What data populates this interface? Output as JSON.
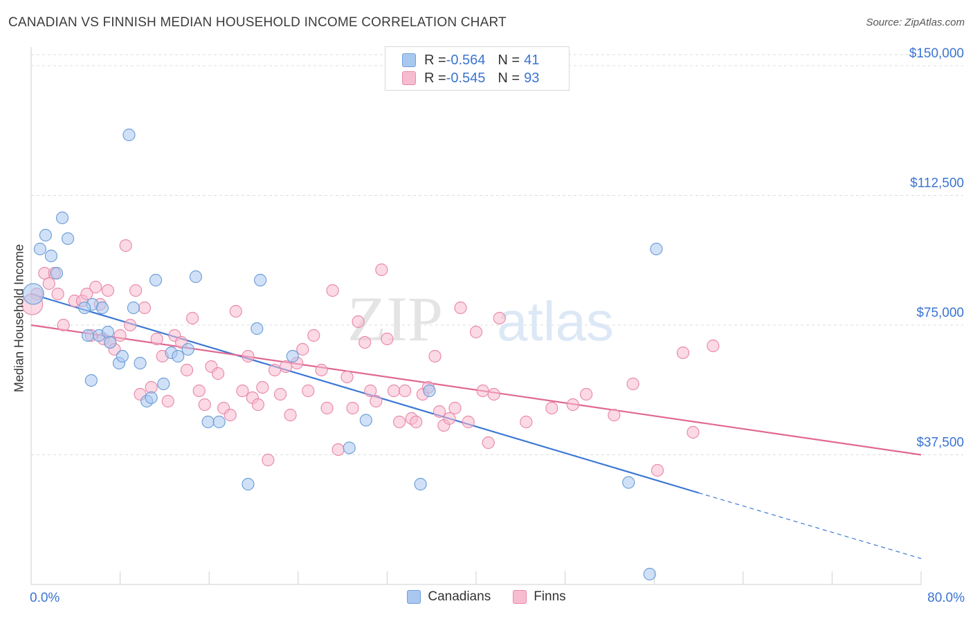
{
  "header": {
    "title": "CANADIAN VS FINNISH MEDIAN HOUSEHOLD INCOME CORRELATION CHART",
    "source": "Source: ZipAtlas.com"
  },
  "watermark": {
    "zip": "ZIP",
    "atlas": "atlas"
  },
  "legend_top": {
    "rows": [
      {
        "r_label": "R = ",
        "r_value": "-0.564",
        "n_label": "N = ",
        "n_value": "41",
        "color": "#a9c8f0",
        "border": "#6f9fd8"
      },
      {
        "r_label": "R = ",
        "r_value": "-0.545",
        "n_label": "N = ",
        "n_value": "93",
        "color": "#f7bcd0",
        "border": "#e98aa9"
      }
    ]
  },
  "legend_bottom": {
    "items": [
      {
        "label": "Canadians",
        "color": "#a9c8f0"
      },
      {
        "label": "Finns",
        "color": "#f7bcd0"
      }
    ]
  },
  "chart_data": {
    "type": "scatter",
    "title": "CANADIAN VS FINNISH MEDIAN HOUSEHOLD INCOME CORRELATION CHART",
    "xlabel": "",
    "ylabel": "Median Household Income",
    "xlim": [
      0,
      80
    ],
    "ylim": [
      0,
      157000
    ],
    "x_tick_labels": [
      "0.0%",
      "80.0%"
    ],
    "y_ticks": [
      37500,
      75000,
      112500,
      150000
    ],
    "y_tick_labels": [
      "$37,500",
      "$75,000",
      "$112,500",
      "$150,000"
    ],
    "grid": true,
    "series": [
      {
        "name": "Canadians",
        "color": "#a9c8f0",
        "stroke": "#6f9fd8",
        "line_color": "#3b78d4",
        "points": [
          [
            0.2,
            84000
          ],
          [
            0.8,
            97000
          ],
          [
            1.3,
            101000
          ],
          [
            1.8,
            95000
          ],
          [
            2.3,
            90000
          ],
          [
            2.8,
            106000
          ],
          [
            3.3,
            100000
          ],
          [
            5.5,
            81000
          ],
          [
            4.8,
            80000
          ],
          [
            5.1,
            72000
          ],
          [
            5.4,
            59000
          ],
          [
            6.1,
            72000
          ],
          [
            6.4,
            80000
          ],
          [
            6.9,
            73000
          ],
          [
            7.1,
            70000
          ],
          [
            7.9,
            64000
          ],
          [
            8.2,
            66000
          ],
          [
            8.8,
            130000
          ],
          [
            9.2,
            80000
          ],
          [
            9.8,
            64000
          ],
          [
            10.4,
            53000
          ],
          [
            10.8,
            54000
          ],
          [
            11.2,
            88000
          ],
          [
            11.9,
            58000
          ],
          [
            12.6,
            67000
          ],
          [
            13.2,
            66000
          ],
          [
            14.1,
            68000
          ],
          [
            14.8,
            89000
          ],
          [
            15.9,
            47000
          ],
          [
            16.9,
            47000
          ],
          [
            19.5,
            29000
          ],
          [
            20.3,
            74000
          ],
          [
            20.6,
            88000
          ],
          [
            23.5,
            66000
          ],
          [
            28.6,
            39500
          ],
          [
            30.1,
            47500
          ],
          [
            35.0,
            29000
          ],
          [
            35.8,
            56000
          ],
          [
            53.7,
            29500
          ],
          [
            56.2,
            97000
          ],
          [
            55.6,
            3000
          ]
        ],
        "trend": {
          "x0": 0,
          "y0": 84000,
          "x1": 60,
          "y1": 26500,
          "dash_to_x": 80,
          "dash_to_y": 7500
        }
      },
      {
        "name": "Finns",
        "color": "#f7bcd0",
        "stroke": "#e98aa9",
        "line_color": "#e06791",
        "points": [
          [
            0.5,
            84000
          ],
          [
            1.2,
            90000
          ],
          [
            1.6,
            87000
          ],
          [
            2.1,
            90000
          ],
          [
            2.4,
            84000
          ],
          [
            2.9,
            75000
          ],
          [
            3.9,
            82000
          ],
          [
            4.6,
            82000
          ],
          [
            5.0,
            84000
          ],
          [
            5.4,
            72000
          ],
          [
            5.8,
            86000
          ],
          [
            6.2,
            81000
          ],
          [
            6.5,
            71000
          ],
          [
            6.9,
            85000
          ],
          [
            7.1,
            70000
          ],
          [
            7.5,
            68000
          ],
          [
            8.0,
            72000
          ],
          [
            8.5,
            98000
          ],
          [
            8.9,
            75000
          ],
          [
            9.4,
            85000
          ],
          [
            9.8,
            55000
          ],
          [
            10.2,
            80000
          ],
          [
            10.8,
            57000
          ],
          [
            11.3,
            71000
          ],
          [
            11.8,
            66000
          ],
          [
            12.3,
            53000
          ],
          [
            12.9,
            72000
          ],
          [
            13.5,
            70000
          ],
          [
            14.0,
            62000
          ],
          [
            14.5,
            77000
          ],
          [
            15.1,
            56000
          ],
          [
            15.6,
            52000
          ],
          [
            16.2,
            63000
          ],
          [
            16.8,
            61000
          ],
          [
            17.3,
            51000
          ],
          [
            17.9,
            49000
          ],
          [
            18.4,
            79000
          ],
          [
            19.0,
            56000
          ],
          [
            19.5,
            66000
          ],
          [
            19.9,
            54000
          ],
          [
            20.4,
            52000
          ],
          [
            20.8,
            57000
          ],
          [
            21.3,
            36000
          ],
          [
            21.9,
            62000
          ],
          [
            22.4,
            55000
          ],
          [
            22.9,
            63000
          ],
          [
            23.3,
            49000
          ],
          [
            23.9,
            64000
          ],
          [
            24.4,
            68000
          ],
          [
            24.9,
            56000
          ],
          [
            25.4,
            72000
          ],
          [
            26.1,
            62000
          ],
          [
            26.6,
            51000
          ],
          [
            27.1,
            85000
          ],
          [
            27.6,
            39000
          ],
          [
            28.4,
            60000
          ],
          [
            28.9,
            51000
          ],
          [
            29.4,
            76000
          ],
          [
            30.0,
            70000
          ],
          [
            30.5,
            56000
          ],
          [
            31.0,
            53000
          ],
          [
            31.5,
            91000
          ],
          [
            32.0,
            71000
          ],
          [
            32.6,
            56000
          ],
          [
            33.1,
            47000
          ],
          [
            33.6,
            56000
          ],
          [
            34.2,
            48000
          ],
          [
            34.6,
            47000
          ],
          [
            35.2,
            55000
          ],
          [
            35.7,
            57000
          ],
          [
            36.3,
            66000
          ],
          [
            36.7,
            50000
          ],
          [
            37.1,
            46000
          ],
          [
            37.6,
            48000
          ],
          [
            38.1,
            51000
          ],
          [
            38.6,
            80000
          ],
          [
            39.3,
            47000
          ],
          [
            40.0,
            73000
          ],
          [
            40.6,
            56000
          ],
          [
            41.1,
            41000
          ],
          [
            41.6,
            55000
          ],
          [
            42.1,
            77000
          ],
          [
            44.5,
            47000
          ],
          [
            46.8,
            51000
          ],
          [
            48.7,
            52000
          ],
          [
            49.9,
            55000
          ],
          [
            52.4,
            49000
          ],
          [
            54.1,
            58000
          ],
          [
            56.3,
            33000
          ],
          [
            58.6,
            67000
          ],
          [
            59.5,
            44000
          ],
          [
            61.3,
            69000
          ],
          [
            0.1,
            81000
          ]
        ],
        "trend": {
          "x0": 0,
          "y0": 75000,
          "x1": 80,
          "y1": 37500
        }
      }
    ]
  }
}
